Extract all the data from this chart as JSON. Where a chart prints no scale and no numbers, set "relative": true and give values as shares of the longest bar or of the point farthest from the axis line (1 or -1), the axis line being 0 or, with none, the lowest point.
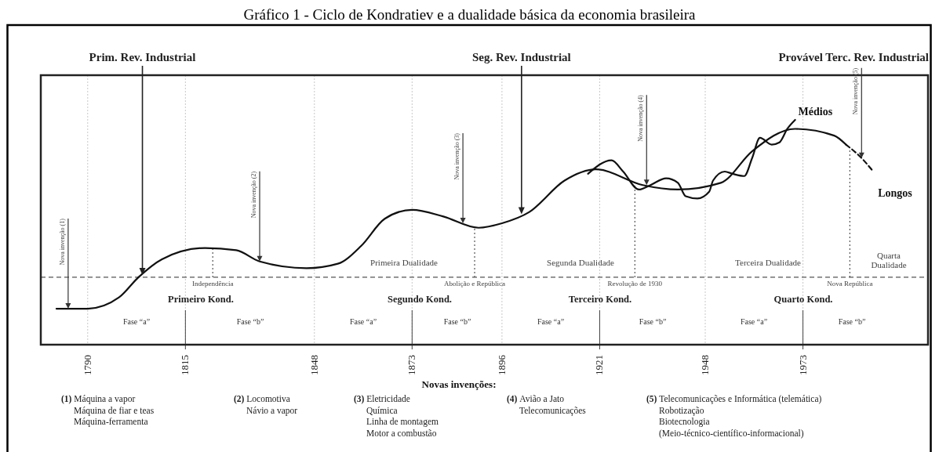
{
  "chart_data": {
    "type": "line",
    "title": "Gráfico 1 - Ciclo de Kondratiev e a dualidade básica da economia brasileira",
    "relative": true,
    "grid": "x",
    "xlim": [
      1778,
      2005
    ],
    "xticks": [
      1790,
      1815,
      1848,
      1873,
      1896,
      1921,
      1948,
      1973
    ],
    "series": [
      {
        "color": "#111111",
        "x": [
          1782,
          1790,
          1798,
          1803,
          1809,
          1820,
          1828,
          1834,
          1846,
          1854,
          1860,
          1866,
          1873,
          1881,
          1890,
          1896,
          1903,
          1912,
          1920,
          1932,
          1941,
          1952,
          1960,
          1971,
          1981,
          1984
        ],
        "values": [
          0.16,
          0.16,
          0.21,
          0.3,
          0.38,
          0.43,
          0.42,
          0.37,
          0.34,
          0.36,
          0.44,
          0.56,
          0.6,
          0.57,
          0.52,
          0.54,
          0.59,
          0.73,
          0.78,
          0.71,
          0.69,
          0.72,
          0.86,
          0.96,
          0.93,
          0.89
        ]
      },
      {
        "name": "Longos",
        "color": "#111111",
        "line_style": "dashed",
        "x": [
          1984,
          1988,
          1991
        ],
        "values": [
          0.89,
          0.83,
          0.77
        ]
      },
      {
        "name": "Médios",
        "color": "#111111",
        "x": [
          1918,
          1924,
          1927,
          1931,
          1934,
          1938,
          1941,
          1943,
          1946,
          1949,
          1950,
          1953,
          1955,
          1958,
          1960,
          1962,
          1965,
          1967,
          1969,
          1971
        ],
        "values": [
          0.76,
          0.82,
          0.77,
          0.69,
          0.71,
          0.74,
          0.72,
          0.66,
          0.65,
          0.68,
          0.73,
          0.77,
          0.76,
          0.75,
          0.83,
          0.92,
          0.89,
          0.9,
          0.96,
          1
        ]
      }
    ],
    "ref_lines": [
      {
        "axis": "y",
        "value": 0.3,
        "line_style": "dashed",
        "color": "#555555"
      },
      {
        "axis": "x",
        "value": 1822,
        "label": "Independência",
        "line_style": "dotted",
        "color": "#555555"
      },
      {
        "axis": "x",
        "value": 1889,
        "label": "Abolição e República",
        "line_style": "dotted",
        "color": "#555555"
      },
      {
        "axis": "x",
        "value": 1930,
        "label": "Revolução de 1930",
        "line_style": "dotted",
        "color": "#555555"
      },
      {
        "axis": "x",
        "value": 1985,
        "label": "Nova República",
        "line_style": "dotted",
        "color": "#555555"
      }
    ],
    "annotations": [
      {
        "text": "Prim. Rev. Industrial",
        "x": 1804,
        "y": 0.31
      },
      {
        "text": "Seg. Rev. Industrial",
        "x": 1901,
        "y": 0.58
      },
      {
        "text": "Nova invenção (1)",
        "x": 1785,
        "y": 0.16
      },
      {
        "text": "Nova invenção (2)",
        "x": 1834,
        "y": 0.37
      },
      {
        "text": "Nova invenção (3)",
        "x": 1886,
        "y": 0.54
      },
      {
        "text": "Nova invenção (4)",
        "x": 1933,
        "y": 0.71
      },
      {
        "text": "Nova invenção (5)",
        "x": 1988,
        "y": 0.83
      },
      "Provável Terc. Rev. Industrial",
      "Primeira Dualidade",
      "Segunda Dualidade",
      "Terceira Dualidade",
      "Quarta\nDualidade",
      "Primeiro Kond.",
      "Segundo Kond.",
      "Terceiro Kond.",
      "Quarto Kond.",
      "Fase “a”",
      "Fase “b”",
      "Fase “a”",
      "Fase “b”",
      "Fase “a”",
      "Fase “b”",
      "Fase “a”",
      "Fase “b”",
      "Novas invenções:",
      "(1) Máquina a vapor\nMáquina de fiar e teas\nMáquina-ferramenta",
      "(2) Locomotiva\nNávio a vapor",
      "(3) Eletricidade\nQuímica\nLinha de montagem\nMotor a combustão",
      "(4) Avião a Jato\nTelecomunicações",
      "(5) Telecomunicações e Informática (telemática)\nRobotização\nBiotecnologia\n(Meio-técnico-científico-informacional)"
    ]
  }
}
